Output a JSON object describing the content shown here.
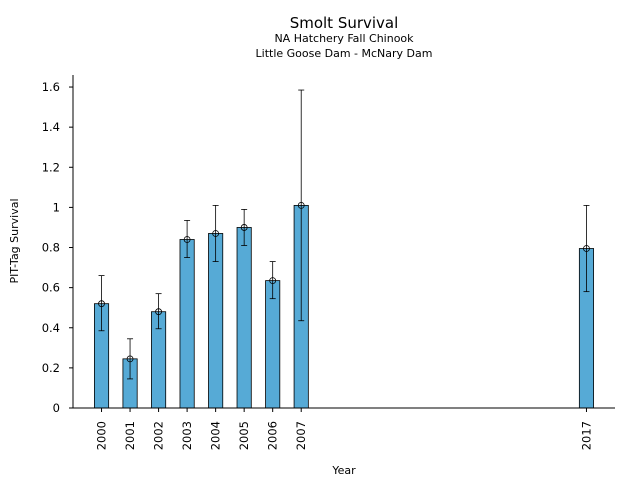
{
  "chart_data": {
    "type": "bar",
    "title": "Smolt Survival",
    "subtitle_lines": [
      "NA Hatchery Fall Chinook",
      "Little Goose Dam - McNary Dam"
    ],
    "xlabel": "Year",
    "ylabel": "PIT-Tag Survival",
    "ylim": [
      0,
      1.66
    ],
    "yticks": [
      0,
      0.2,
      0.4,
      0.6,
      0.8,
      1,
      1.2,
      1.4,
      1.6
    ],
    "ytick_labels": [
      "0",
      "0.2",
      "0.4",
      "0.6",
      "0.8",
      "1",
      "1.2",
      "1.4",
      "1.6"
    ],
    "xlim": [
      1999.0,
      2018.0
    ],
    "x": [
      2000,
      2001,
      2002,
      2003,
      2004,
      2005,
      2006,
      2007,
      2017
    ],
    "x_labels": [
      "2000",
      "2001",
      "2002",
      "2003",
      "2004",
      "2005",
      "2006",
      "2007",
      "2017"
    ],
    "values": [
      0.52,
      0.245,
      0.48,
      0.84,
      0.87,
      0.9,
      0.635,
      1.01,
      0.795
    ],
    "error_low": [
      0.385,
      0.145,
      0.395,
      0.75,
      0.73,
      0.81,
      0.545,
      0.435,
      0.58
    ],
    "error_high": [
      0.66,
      0.345,
      0.57,
      0.935,
      1.01,
      0.99,
      0.73,
      1.585,
      1.01
    ],
    "bar_color": "#56aad6",
    "edge_color": "#000000",
    "grid": false,
    "legend": "none"
  }
}
